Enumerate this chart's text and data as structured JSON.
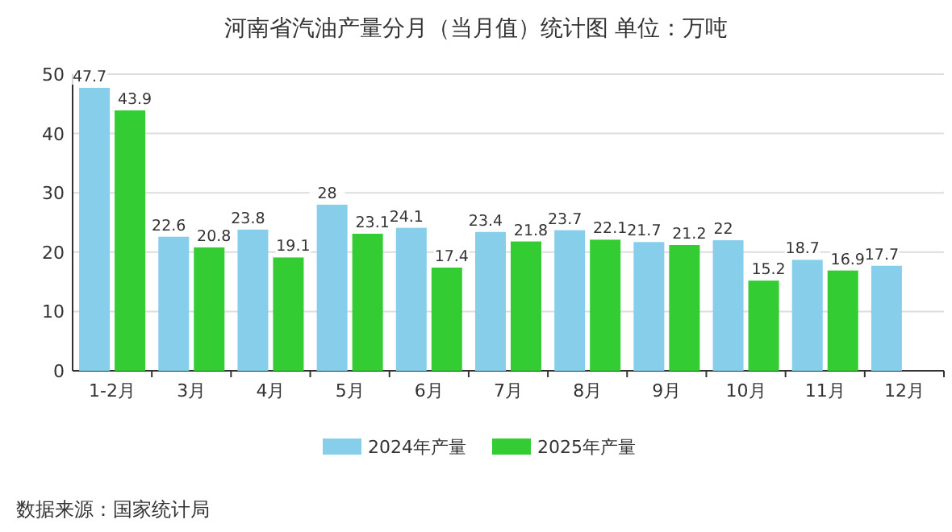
{
  "chart_data": {
    "type": "bar",
    "title": "河南省汽油产量分月（当月值）统计图 单位：万吨",
    "categories": [
      "1-2月",
      "3月",
      "4月",
      "5月",
      "6月",
      "7月",
      "8月",
      "9月",
      "10月",
      "11月",
      "12月"
    ],
    "series": [
      {
        "name": "2024年产量",
        "color": "#87ceeb",
        "values": [
          47.7,
          22.6,
          23.8,
          28,
          24.1,
          23.4,
          23.7,
          21.7,
          22,
          18.7,
          17.7
        ]
      },
      {
        "name": "2025年产量",
        "color": "#33cc33",
        "values": [
          43.9,
          20.8,
          19.1,
          23.1,
          17.4,
          21.8,
          22.1,
          21.2,
          15.2,
          16.9,
          null
        ]
      }
    ],
    "ylim": [
      0,
      50
    ],
    "yticks": [
      0,
      10,
      20,
      30,
      40,
      50
    ],
    "grid": "y",
    "legend": "bottom",
    "data_labels": true,
    "annotations": [
      "数据来源：国家统计局"
    ]
  }
}
